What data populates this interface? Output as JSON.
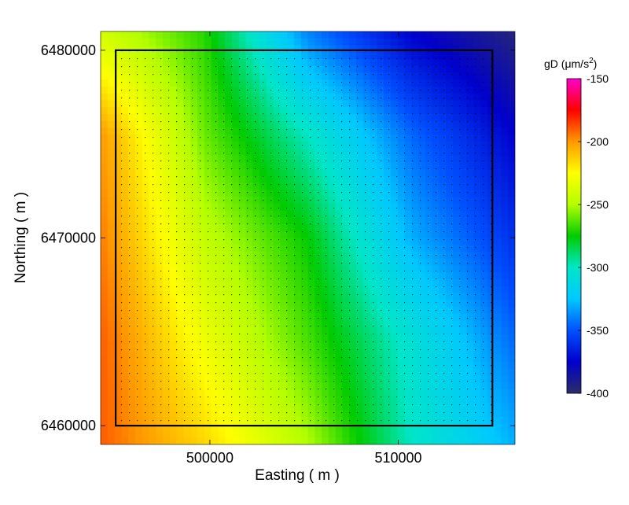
{
  "chart_data": {
    "type": "heatmap",
    "xlabel": "Easting ( m )",
    "ylabel": "Northing ( m )",
    "xlim": [
      494200,
      516200
    ],
    "ylim": [
      6459000,
      6481000
    ],
    "x_ticks": [
      500000,
      510000
    ],
    "y_ticks": [
      6460000,
      6470000,
      6480000
    ],
    "survey_boundary": {
      "x": [
        495000,
        515000
      ],
      "y": [
        6460000,
        6480000
      ]
    },
    "field": {
      "x": [
        494200,
        499700,
        505200,
        510700,
        516200
      ],
      "y": [
        6481000,
        6475500,
        6470000,
        6464500,
        6459000
      ],
      "values": [
        [
          -240,
          -270,
          -340,
          -375,
          -395
        ],
        [
          -200,
          -260,
          -300,
          -345,
          -375
        ],
        [
          -195,
          -245,
          -275,
          -330,
          -360
        ],
        [
          -190,
          -230,
          -265,
          -305,
          -345
        ],
        [
          -190,
          -215,
          -250,
          -300,
          -330
        ]
      ]
    },
    "colorbar": {
      "title_prefix": "gD (",
      "title_unit": "μm/s",
      "title_exp": "2",
      "title_suffix": ")",
      "ticks": [
        -150,
        -200,
        -250,
        -300,
        -350,
        -400
      ],
      "tick_labels": [
        "-150",
        "-200",
        "-250",
        "-300",
        "-350",
        "-400"
      ],
      "range": [
        -400,
        -150
      ],
      "colors": [
        "#2d2d66",
        "#0000cc",
        "#0050ff",
        "#00c8ff",
        "#00e6c8",
        "#00cc00",
        "#b4ff00",
        "#ffff00",
        "#ff9900",
        "#ff0000",
        "#ff00cc"
      ]
    }
  }
}
